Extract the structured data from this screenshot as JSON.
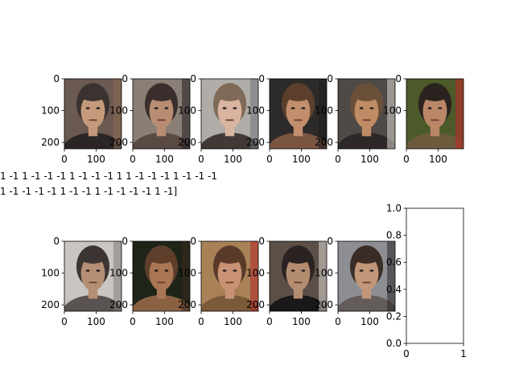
{
  "figure": {
    "background": "#ffffff",
    "axis_color": "#000000"
  },
  "chart_data": [
    {
      "type": "image",
      "panel": "row-1-col-1",
      "image_tick_y": [
        "0",
        "100",
        "200"
      ],
      "image_tick_x": [
        "0",
        "100"
      ],
      "ylim": [
        0,
        220
      ],
      "xlim": [
        0,
        180
      ],
      "description": "face photo thumbnail",
      "palette": [
        "#6b5a52",
        "#3b3331",
        "#c49a7a",
        "#8a6b52",
        "#2b2625"
      ]
    },
    {
      "type": "image",
      "panel": "row-1-col-2",
      "image_tick_y": [
        "0",
        "100",
        "200"
      ],
      "image_tick_x": [
        "0",
        "100"
      ],
      "ylim": [
        0,
        220
      ],
      "xlim": [
        0,
        180
      ],
      "palette": [
        "#8a7f76",
        "#3a2e2d",
        "#b88d73",
        "#251e22",
        "#5a4a44"
      ]
    },
    {
      "type": "image",
      "panel": "row-1-col-3",
      "image_tick_y": [
        "0",
        "100",
        "200"
      ],
      "image_tick_x": [
        "0",
        "100"
      ],
      "ylim": [
        0,
        220
      ],
      "xlim": [
        0,
        180
      ],
      "palette": [
        "#b0ada8",
        "#7f6a57",
        "#d9b4a0",
        "#6f7580",
        "#403935"
      ]
    },
    {
      "type": "image",
      "panel": "row-1-col-4",
      "image_tick_y": [
        "0",
        "100",
        "200"
      ],
      "image_tick_x": [
        "0",
        "100"
      ],
      "ylim": [
        0,
        220
      ],
      "xlim": [
        0,
        180
      ],
      "palette": [
        "#2d2a2a",
        "#5c3e2c",
        "#c28e6d",
        "#1e1b1c",
        "#7a5641"
      ]
    },
    {
      "type": "image",
      "panel": "row-1-col-5",
      "image_tick_y": [
        "0",
        "100",
        "200"
      ],
      "image_tick_x": [
        "0",
        "100"
      ],
      "ylim": [
        0,
        220
      ],
      "xlim": [
        0,
        180
      ],
      "palette": [
        "#4f4a47",
        "#6a5038",
        "#c08c66",
        "#ded7cf",
        "#2d2827"
      ]
    },
    {
      "type": "image",
      "panel": "row-1-col-6",
      "image_tick_y": [
        "0",
        "100"
      ],
      "image_tick_x": [
        "0",
        "100"
      ],
      "ylim": [
        0,
        220
      ],
      "xlim": [
        0,
        180
      ],
      "palette": [
        "#4c5a2a",
        "#2a231f",
        "#b98668",
        "#c42a25",
        "#6b5a3c"
      ]
    },
    {
      "type": "image",
      "panel": "row-2-col-1",
      "image_tick_y": [
        "0",
        "100",
        "200"
      ],
      "image_tick_x": [
        "0",
        "100"
      ],
      "ylim": [
        0,
        220
      ],
      "xlim": [
        0,
        180
      ],
      "palette": [
        "#c9c6c1",
        "#3b3432",
        "#b68e75",
        "#7f7c7a",
        "#5b5351"
      ]
    },
    {
      "type": "image",
      "panel": "row-2-col-2",
      "image_tick_y": [
        "0",
        "100",
        "200"
      ],
      "image_tick_x": [
        "0",
        "100"
      ],
      "ylim": [
        0,
        220
      ],
      "xlim": [
        0,
        180
      ],
      "palette": [
        "#1e2418",
        "#5e3f2c",
        "#a97755",
        "#3a2a20",
        "#8a6243"
      ]
    },
    {
      "type": "image",
      "panel": "row-2-col-3",
      "image_tick_y": [
        "0",
        "100",
        "200"
      ],
      "image_tick_x": [
        "0",
        "100"
      ],
      "ylim": [
        0,
        220
      ],
      "xlim": [
        0,
        180
      ],
      "palette": [
        "#a88157",
        "#5a3a28",
        "#c99274",
        "#b22a2a",
        "#7b5a3a"
      ]
    },
    {
      "type": "image",
      "panel": "row-2-col-4",
      "image_tick_y": [
        "0",
        "100",
        "200"
      ],
      "image_tick_x": [
        "0",
        "100"
      ],
      "ylim": [
        0,
        220
      ],
      "xlim": [
        0,
        180
      ],
      "palette": [
        "#5b4f48",
        "#2a2322",
        "#b48c70",
        "#ded9d2",
        "#1a1818"
      ]
    },
    {
      "type": "image",
      "panel": "row-2-col-5",
      "image_tick_y": [
        "0",
        "100",
        "200"
      ],
      "image_tick_x": [
        "0",
        "100"
      ],
      "ylim": [
        0,
        220
      ],
      "xlim": [
        0,
        180
      ],
      "palette": [
        "#8d8e93",
        "#3a2d26",
        "#c29678",
        "#2a2628",
        "#645c5a"
      ]
    },
    {
      "type": "empty",
      "panel": "row-2-col-6",
      "ylim": [
        0,
        1
      ],
      "xlim": [
        0,
        1
      ],
      "y_ticks": [
        0.0,
        0.2,
        0.4,
        0.6,
        0.8,
        1.0
      ],
      "y_tick_labels": [
        "0.0",
        "0.2",
        "0.4",
        "0.6",
        "0.8",
        "1.0"
      ],
      "x_ticks": [
        0,
        1
      ],
      "x_tick_labels": [
        "0",
        "1"
      ]
    }
  ],
  "overlay_text": {
    "line1": "1 -1  1 -1 -1 -1  1 -1 -1 -1  1  1 -1 -1 -1  1 -1 -1 -1",
    "line2": "1 -1 -1 -1 -1  1 -1 -1  1 -1 -1 -1 -1  1 -1]"
  }
}
